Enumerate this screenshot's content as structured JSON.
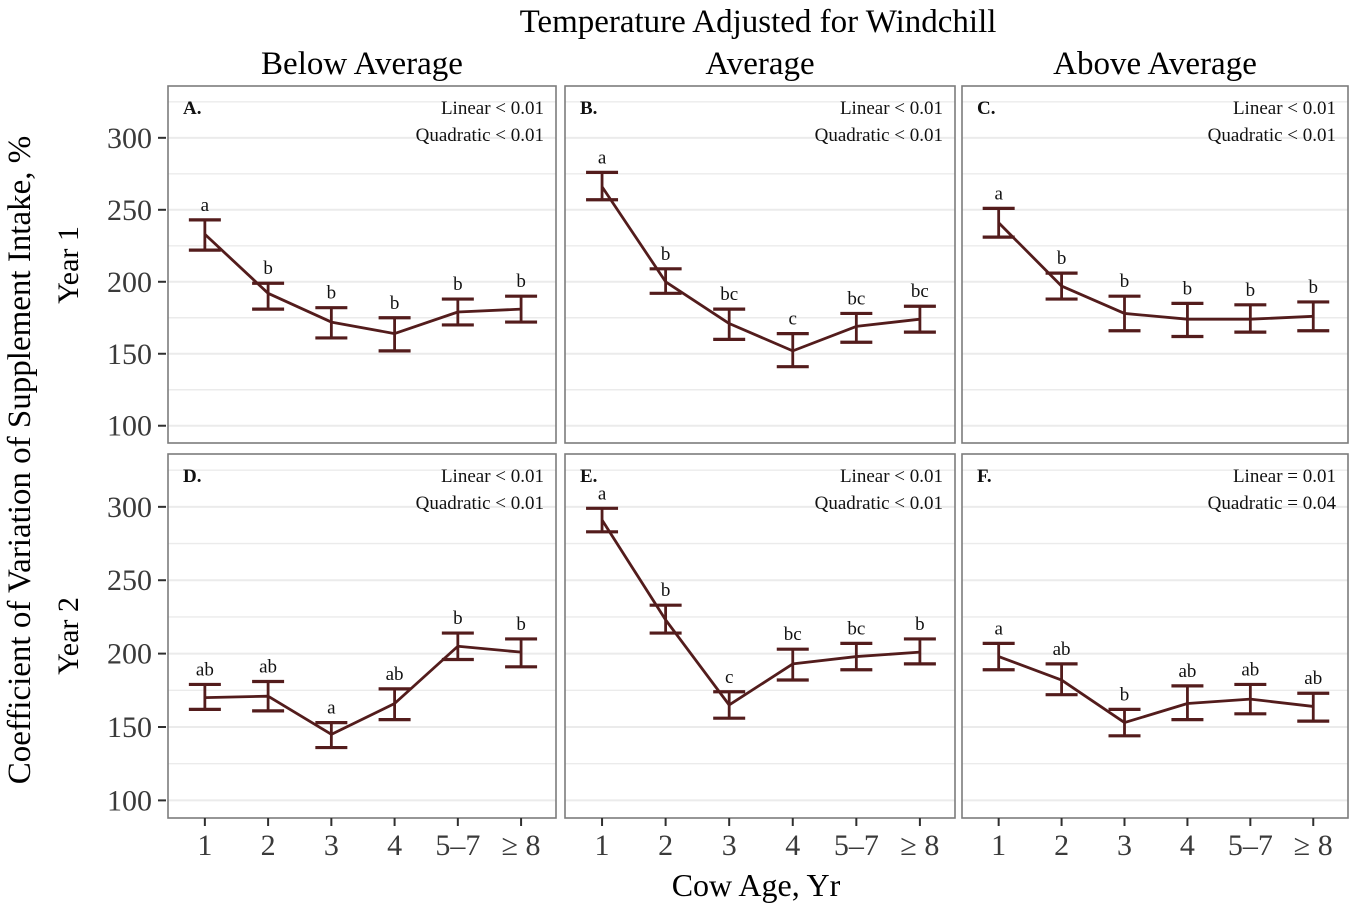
{
  "figure": {
    "title": "Temperature Adjusted for Windchill",
    "column_headers": [
      "Below Average",
      "Average",
      "Above Average"
    ],
    "row_headers": [
      "Year 1",
      "Year 2"
    ],
    "y_axis_label": "Coefficient of Variation of Supplement Intake, %",
    "x_axis_label": "Cow Age, Yr"
  },
  "colors": {
    "series": "#531c1c",
    "grid": "#ebebeb",
    "panel_border": "#7c7c7c",
    "tick_mark": "#2f2f2f",
    "axis_text": "#3a3a3a",
    "text": "#111111"
  },
  "chart_data": {
    "type": "line",
    "categories": [
      "1",
      "2",
      "3",
      "4",
      "5–7",
      "≥ 8"
    ],
    "xlabel": "Cow Age, Yr",
    "ylabel": "Coefficient of Variation of Supplement Intake, %",
    "ylim": [
      88,
      336
    ],
    "yticks": [
      300,
      250,
      200,
      150,
      100
    ],
    "grid_interval": 25,
    "error_bars": "mean with upper/lower error caps",
    "legend": "none",
    "panels": [
      {
        "id": "A.",
        "row": "Year 1",
        "column": "Below Average",
        "stats": [
          "Linear < 0.01",
          "Quadratic < 0.01"
        ],
        "means": [
          233,
          192,
          172,
          164,
          179,
          181
        ],
        "ci_low": [
          222,
          181,
          161,
          152,
          170,
          172
        ],
        "ci_high": [
          243,
          199,
          182,
          175,
          188,
          190
        ],
        "letters": [
          "a",
          "b",
          "b",
          "b",
          "b",
          "b"
        ]
      },
      {
        "id": "B.",
        "row": "Year 1",
        "column": "Average",
        "stats": [
          "Linear < 0.01",
          "Quadratic < 0.01"
        ],
        "means": [
          266,
          200,
          171,
          152,
          169,
          174
        ],
        "ci_low": [
          257,
          192,
          160,
          141,
          158,
          165
        ],
        "ci_high": [
          276,
          209,
          181,
          164,
          178,
          183
        ],
        "letters": [
          "a",
          "b",
          "bc",
          "c",
          "bc",
          "bc"
        ]
      },
      {
        "id": "C.",
        "row": "Year 1",
        "column": "Above Average",
        "stats": [
          "Linear < 0.01",
          "Quadratic < 0.01"
        ],
        "means": [
          241,
          197,
          178,
          174,
          174,
          176
        ],
        "ci_low": [
          231,
          188,
          166,
          162,
          165,
          166
        ],
        "ci_high": [
          251,
          206,
          190,
          185,
          184,
          186
        ],
        "letters": [
          "a",
          "b",
          "b",
          "b",
          "b",
          "b"
        ]
      },
      {
        "id": "D.",
        "row": "Year 2",
        "column": "Below Average",
        "stats": [
          "Linear < 0.01",
          "Quadratic < 0.01"
        ],
        "means": [
          170,
          171,
          145,
          166,
          205,
          201
        ],
        "ci_low": [
          162,
          161,
          136,
          155,
          196,
          191
        ],
        "ci_high": [
          179,
          181,
          153,
          176,
          214,
          210
        ],
        "letters": [
          "ab",
          "ab",
          "a",
          "ab",
          "b",
          "b"
        ]
      },
      {
        "id": "E.",
        "row": "Year 2",
        "column": "Average",
        "stats": [
          "Linear < 0.01",
          "Quadratic < 0.01"
        ],
        "means": [
          291,
          223,
          165,
          193,
          198,
          201
        ],
        "ci_low": [
          283,
          214,
          156,
          182,
          189,
          193
        ],
        "ci_high": [
          299,
          233,
          174,
          203,
          207,
          210
        ],
        "letters": [
          "a",
          "b",
          "c",
          "bc",
          "bc",
          "b"
        ]
      },
      {
        "id": "F.",
        "row": "Year 2",
        "column": "Above Average",
        "stats": [
          "Linear = 0.01",
          "Quadratic = 0.04"
        ],
        "means": [
          198,
          182,
          153,
          166,
          169,
          164
        ],
        "ci_low": [
          189,
          172,
          144,
          155,
          159,
          154
        ],
        "ci_high": [
          207,
          193,
          162,
          178,
          179,
          173
        ],
        "letters": [
          "a",
          "ab",
          "b",
          "ab",
          "ab",
          "ab"
        ]
      }
    ]
  }
}
